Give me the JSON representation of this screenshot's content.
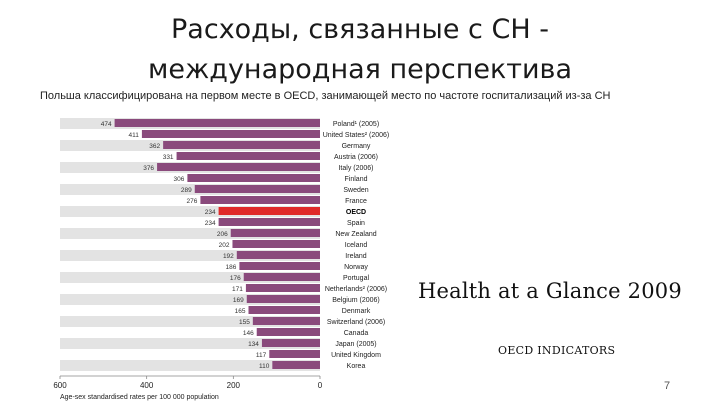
{
  "slide": {
    "title": "Расходы, связанные с СН - международная перспектива",
    "subtitle": "Польша классифицирована на первом месте в OECD, занимающей место по частоте госпитализаций из-за СН",
    "brand": "Health at a Glance 2009",
    "brand_sub": "OECD INDICATORS",
    "page_number": "7"
  },
  "chart_data": {
    "type": "bar",
    "orientation": "horizontal",
    "categories": [
      "Poland¹ (2005)",
      "United States² (2006)",
      "Germany",
      "Austria (2006)",
      "Italy (2006)",
      "Finland",
      "Sweden",
      "France",
      "OECD",
      "Spain",
      "New Zealand",
      "Iceland",
      "Ireland",
      "Norway",
      "Portugal",
      "Netherlands² (2006)",
      "Belgium (2006)",
      "Denmark",
      "Switzerland (2006)",
      "Canada",
      "Japan (2005)",
      "United Kingdom",
      "Korea"
    ],
    "value_labels": [
      "474",
      "411",
      "362",
      "331",
      "376",
      "306",
      "289",
      "276",
      "234",
      "234",
      "206",
      "202",
      "192",
      "186",
      "176",
      "171",
      "169",
      "165",
      "155",
      "146",
      "134",
      "117",
      "110"
    ],
    "values": [
      474,
      411,
      362,
      331,
      376,
      306,
      289,
      276,
      234,
      234,
      206,
      202,
      192,
      186,
      176,
      171,
      169,
      165,
      155,
      146,
      134,
      117,
      110
    ],
    "highlight": "OECD",
    "xlim": [
      0,
      600
    ],
    "x_reversed": true,
    "xticks": [
      "600",
      "400",
      "200",
      "0"
    ],
    "xlabel": "Age-sex standardised rates per 100 000 population",
    "colors": {
      "bar": "#8a4a7c",
      "highlight": "#e02a2a",
      "grid_band": "#e3e3e3"
    }
  }
}
